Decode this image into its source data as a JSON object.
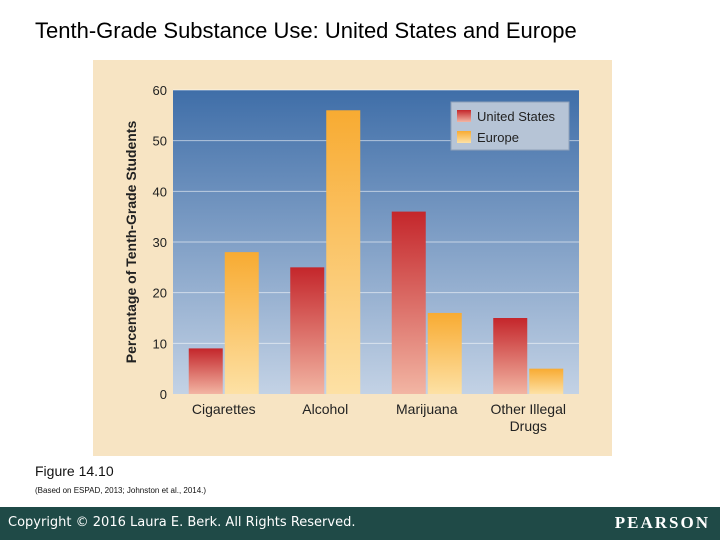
{
  "slide": {
    "title": "Tenth-Grade Substance Use: United States and Europe",
    "caption": "Figure 14.10",
    "source": "(Based on ESPAD, 2013; Johnston et al., 2014.)"
  },
  "footer": {
    "copyright": "Copyright © 2016 Laura E. Berk. All Rights Reserved.",
    "brand": "PEARSON"
  },
  "colors": {
    "plot_top": "#3f6ea8",
    "plot_bottom": "#c3d2e5",
    "us_top": "#c4262b",
    "us_bottom": "#f2b5a3",
    "eu_top": "#f8ab32",
    "eu_bottom": "#fde1a5",
    "panel": "#f7e4c3"
  },
  "chart_data": {
    "type": "bar",
    "title": "",
    "xlabel": "",
    "ylabel": "Percentage of Tenth-Grade Students",
    "ylim": [
      0,
      60
    ],
    "yticks": [
      0,
      10,
      20,
      30,
      40,
      50,
      60
    ],
    "grid": true,
    "legend_position": "top-right",
    "categories": [
      "Cigarettes",
      "Alcohol",
      "Marijuana",
      "Other Illegal Drugs"
    ],
    "category_lines": [
      [
        "Cigarettes"
      ],
      [
        "Alcohol"
      ],
      [
        "Marijuana"
      ],
      [
        "Other Illegal",
        "Drugs"
      ]
    ],
    "series": [
      {
        "name": "United States",
        "values": [
          9,
          25,
          36,
          15
        ]
      },
      {
        "name": "Europe",
        "values": [
          28,
          56,
          16,
          5
        ]
      }
    ]
  }
}
